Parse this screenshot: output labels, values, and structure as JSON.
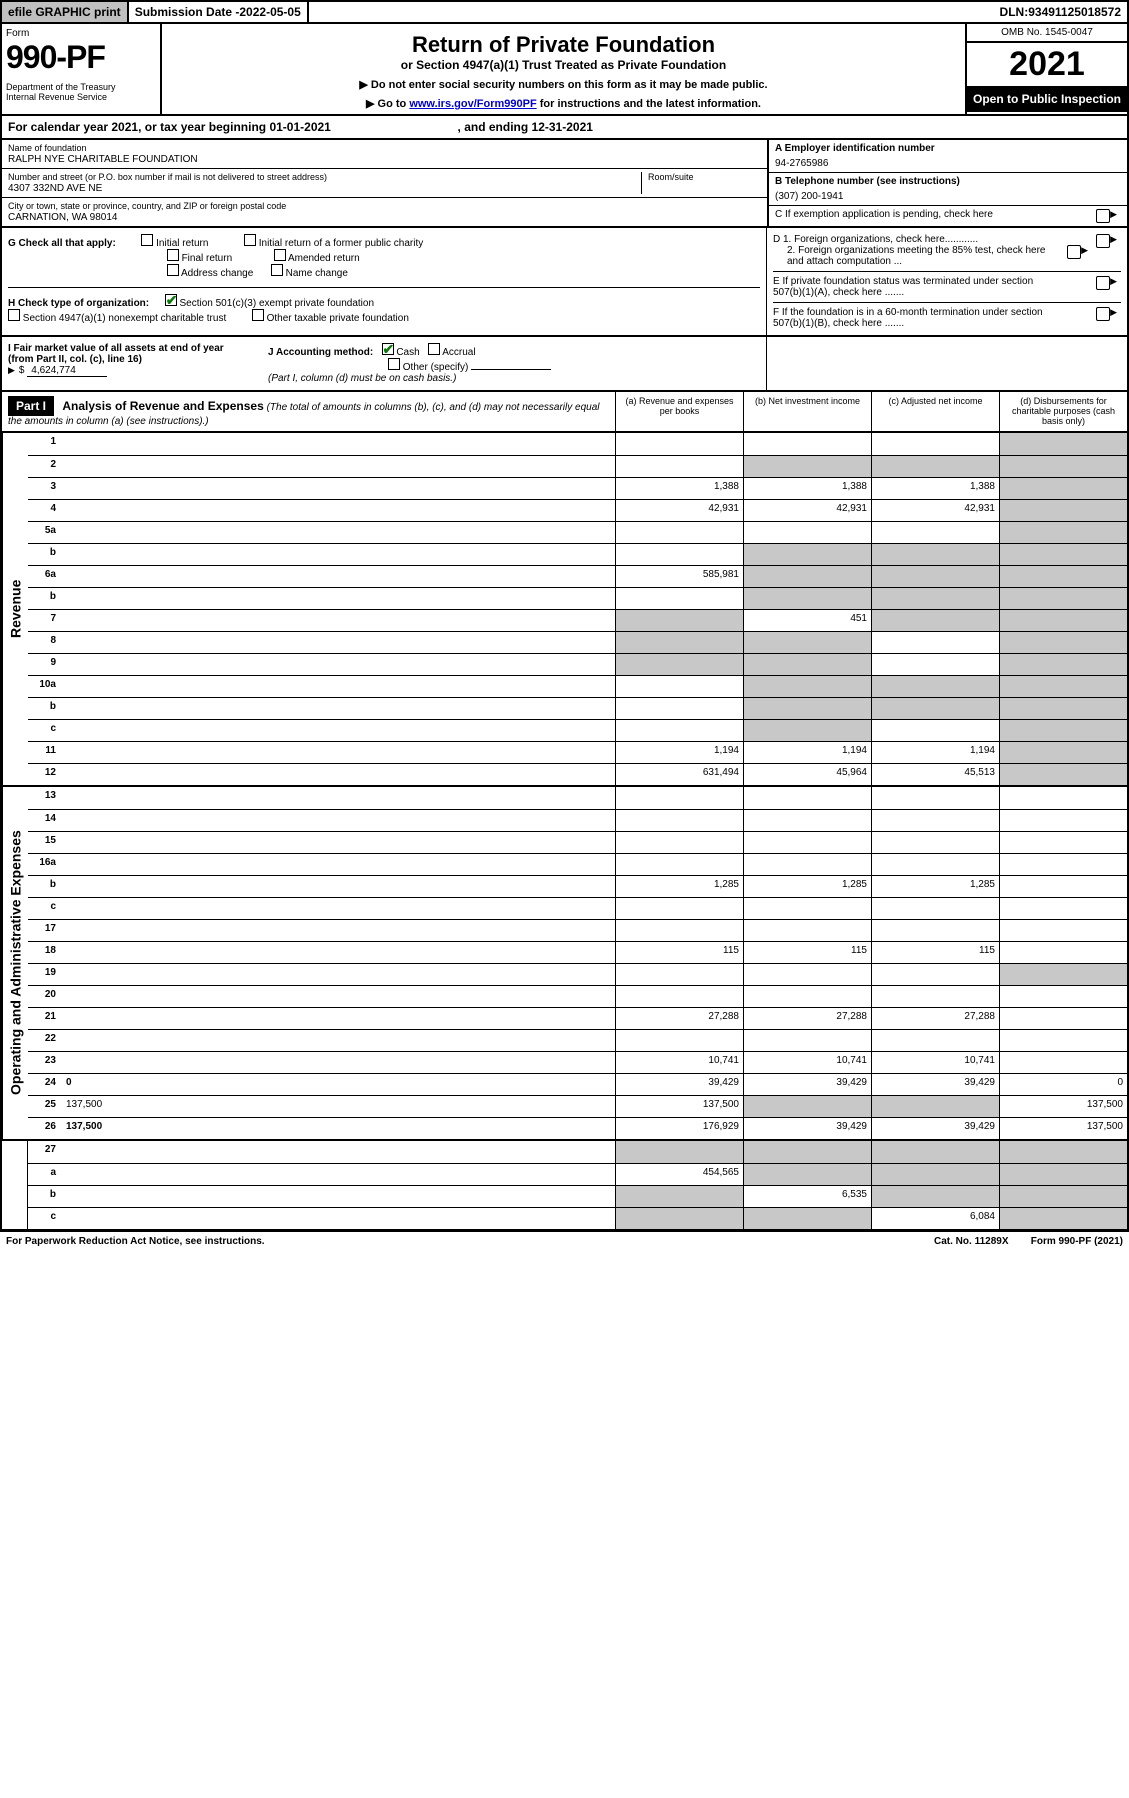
{
  "topbar": {
    "efile": "efile GRAPHIC print",
    "subdate_label": "Submission Date - ",
    "subdate": "2022-05-05",
    "dln_label": "DLN: ",
    "dln": "93491125018572"
  },
  "header": {
    "form": "Form",
    "num": "990-PF",
    "dept": "Department of the Treasury\nInternal Revenue Service",
    "title": "Return of Private Foundation",
    "sub": "or Section 4947(a)(1) Trust Treated as Private Foundation",
    "note1": "▶ Do not enter social security numbers on this form as it may be made public.",
    "note2_pre": "▶ Go to ",
    "note2_link": "www.irs.gov/Form990PF",
    "note2_post": " for instructions and the latest information.",
    "omb": "OMB No. 1545-0047",
    "year": "2021",
    "open": "Open to Public Inspection"
  },
  "cy": {
    "text_a": "For calendar year 2021, or tax year beginning ",
    "begin": "01-01-2021",
    "text_b": ", and ending ",
    "end": "12-31-2021"
  },
  "info": {
    "name_label": "Name of foundation",
    "name": "RALPH NYE CHARITABLE FOUNDATION",
    "addr_label": "Number and street (or P.O. box number if mail is not delivered to street address)",
    "addr": "4307 332ND AVE NE",
    "room_label": "Room/suite",
    "city_label": "City or town, state or province, country, and ZIP or foreign postal code",
    "city": "CARNATION, WA  98014",
    "ein_label": "A Employer identification number",
    "ein": "94-2765986",
    "tel_label": "B Telephone number (see instructions)",
    "tel": "(307) 200-1941",
    "c": "C If exemption application is pending, check here",
    "d1": "D 1. Foreign organizations, check here............",
    "d2": "2. Foreign organizations meeting the 85% test, check here and attach computation ...",
    "e": "E  If private foundation status was terminated under section 507(b)(1)(A), check here .......",
    "f": "F  If the foundation is in a 60-month termination under section 507(b)(1)(B), check here .......",
    "g_label": "G Check all that apply:",
    "g_opts": [
      "Initial return",
      "Final return",
      "Address change",
      "Initial return of a former public charity",
      "Amended return",
      "Name change"
    ],
    "h_label": "H Check type of organization:",
    "h1": "Section 501(c)(3) exempt private foundation",
    "h2": "Section 4947(a)(1) nonexempt charitable trust",
    "h3": "Other taxable private foundation",
    "i_label": "I Fair market value of all assets at end of year (from Part II, col. (c), line 16)",
    "i_val": "4,624,774",
    "j_label": "J Accounting method:",
    "j_cash": "Cash",
    "j_accrual": "Accrual",
    "j_other": "Other (specify)",
    "j_note": "(Part I, column (d) must be on cash basis.)"
  },
  "part1": {
    "label": "Part I",
    "title": "Analysis of Revenue and Expenses",
    "title_note": " (The total of amounts in columns (b), (c), and (d) may not necessarily equal the amounts in column (a) (see instructions).)",
    "cols": {
      "a": "(a)  Revenue and expenses per books",
      "b": "(b)  Net investment income",
      "c": "(c)  Adjusted net income",
      "d": "(d)  Disbursements for charitable purposes (cash basis only)"
    }
  },
  "side": {
    "rev": "Revenue",
    "op": "Operating and Administrative Expenses"
  },
  "rows_rev": [
    {
      "n": "1",
      "d": "",
      "a": "",
      "b": "",
      "c": "",
      "sd": true
    },
    {
      "n": "2",
      "d": "",
      "a": "",
      "b": "",
      "c": "",
      "sb": true,
      "sc": true,
      "sd": true,
      "noamt": true
    },
    {
      "n": "3",
      "d": "",
      "a": "1,388",
      "b": "1,388",
      "c": "1,388",
      "sd": true
    },
    {
      "n": "4",
      "d": "",
      "a": "42,931",
      "b": "42,931",
      "c": "42,931",
      "sd": true
    },
    {
      "n": "5a",
      "d": "",
      "a": "",
      "b": "",
      "c": "",
      "sd": true
    },
    {
      "n": "b",
      "d": "",
      "a": "",
      "b": "",
      "c": "",
      "sb": true,
      "sc": true,
      "sd": true,
      "noamt": true
    },
    {
      "n": "6a",
      "d": "",
      "a": "585,981",
      "b": "",
      "c": "",
      "sb": true,
      "sc": true,
      "sd": true
    },
    {
      "n": "b",
      "d": "",
      "a": "",
      "b": "",
      "c": "",
      "sb": true,
      "sc": true,
      "sd": true,
      "noamt": true
    },
    {
      "n": "7",
      "d": "",
      "a": "",
      "b": "451",
      "c": "",
      "sa": true,
      "sc": true,
      "sd": true
    },
    {
      "n": "8",
      "d": "",
      "a": "",
      "b": "",
      "c": "",
      "sa": true,
      "sb": true,
      "sd": true
    },
    {
      "n": "9",
      "d": "",
      "a": "",
      "b": "",
      "c": "",
      "sa": true,
      "sb": true,
      "sd": true
    },
    {
      "n": "10a",
      "d": "",
      "a": "",
      "b": "",
      "c": "",
      "sb": true,
      "sc": true,
      "sd": true,
      "noamt": true
    },
    {
      "n": "b",
      "d": "",
      "a": "",
      "b": "",
      "c": "",
      "sb": true,
      "sc": true,
      "sd": true,
      "noamt": true
    },
    {
      "n": "c",
      "d": "",
      "a": "",
      "b": "",
      "c": "",
      "sb": true,
      "sd": true
    },
    {
      "n": "11",
      "d": "",
      "a": "1,194",
      "b": "1,194",
      "c": "1,194",
      "sd": true
    },
    {
      "n": "12",
      "d": "",
      "a": "631,494",
      "b": "45,964",
      "c": "45,513",
      "sd": true,
      "bold": true
    }
  ],
  "rows_op": [
    {
      "n": "13",
      "d": "",
      "a": "",
      "b": "",
      "c": ""
    },
    {
      "n": "14",
      "d": "",
      "a": "",
      "b": "",
      "c": ""
    },
    {
      "n": "15",
      "d": "",
      "a": "",
      "b": "",
      "c": ""
    },
    {
      "n": "16a",
      "d": "",
      "a": "",
      "b": "",
      "c": ""
    },
    {
      "n": "b",
      "d": "",
      "a": "1,285",
      "b": "1,285",
      "c": "1,285"
    },
    {
      "n": "c",
      "d": "",
      "a": "",
      "b": "",
      "c": ""
    },
    {
      "n": "17",
      "d": "",
      "a": "",
      "b": "",
      "c": ""
    },
    {
      "n": "18",
      "d": "",
      "a": "115",
      "b": "115",
      "c": "115"
    },
    {
      "n": "19",
      "d": "",
      "a": "",
      "b": "",
      "c": "",
      "sd": true
    },
    {
      "n": "20",
      "d": "",
      "a": "",
      "b": "",
      "c": ""
    },
    {
      "n": "21",
      "d": "",
      "a": "27,288",
      "b": "27,288",
      "c": "27,288"
    },
    {
      "n": "22",
      "d": "",
      "a": "",
      "b": "",
      "c": ""
    },
    {
      "n": "23",
      "d": "",
      "a": "10,741",
      "b": "10,741",
      "c": "10,741"
    },
    {
      "n": "24",
      "d": "0",
      "a": "39,429",
      "b": "39,429",
      "c": "39,429",
      "bold": true
    },
    {
      "n": "25",
      "d": "137,500",
      "a": "137,500",
      "b": "",
      "c": "",
      "sb": true,
      "sc": true
    },
    {
      "n": "26",
      "d": "137,500",
      "a": "176,929",
      "b": "39,429",
      "c": "39,429",
      "bold": true
    }
  ],
  "rows_bot": [
    {
      "n": "27",
      "d": "",
      "a": "",
      "b": "",
      "c": "",
      "sa": true,
      "sb": true,
      "sc": true,
      "sd": true
    },
    {
      "n": "a",
      "d": "",
      "a": "454,565",
      "b": "",
      "c": "",
      "sb": true,
      "sc": true,
      "sd": true,
      "bold": true
    },
    {
      "n": "b",
      "d": "",
      "a": "",
      "b": "6,535",
      "c": "",
      "sa": true,
      "sc": true,
      "sd": true,
      "bold": true
    },
    {
      "n": "c",
      "d": "",
      "a": "",
      "b": "",
      "c": "6,084",
      "sa": true,
      "sb": true,
      "sd": true,
      "bold": true
    }
  ],
  "footer": {
    "left": "For Paperwork Reduction Act Notice, see instructions.",
    "mid": "Cat. No. 11289X",
    "right": "Form 990-PF (2021)"
  }
}
